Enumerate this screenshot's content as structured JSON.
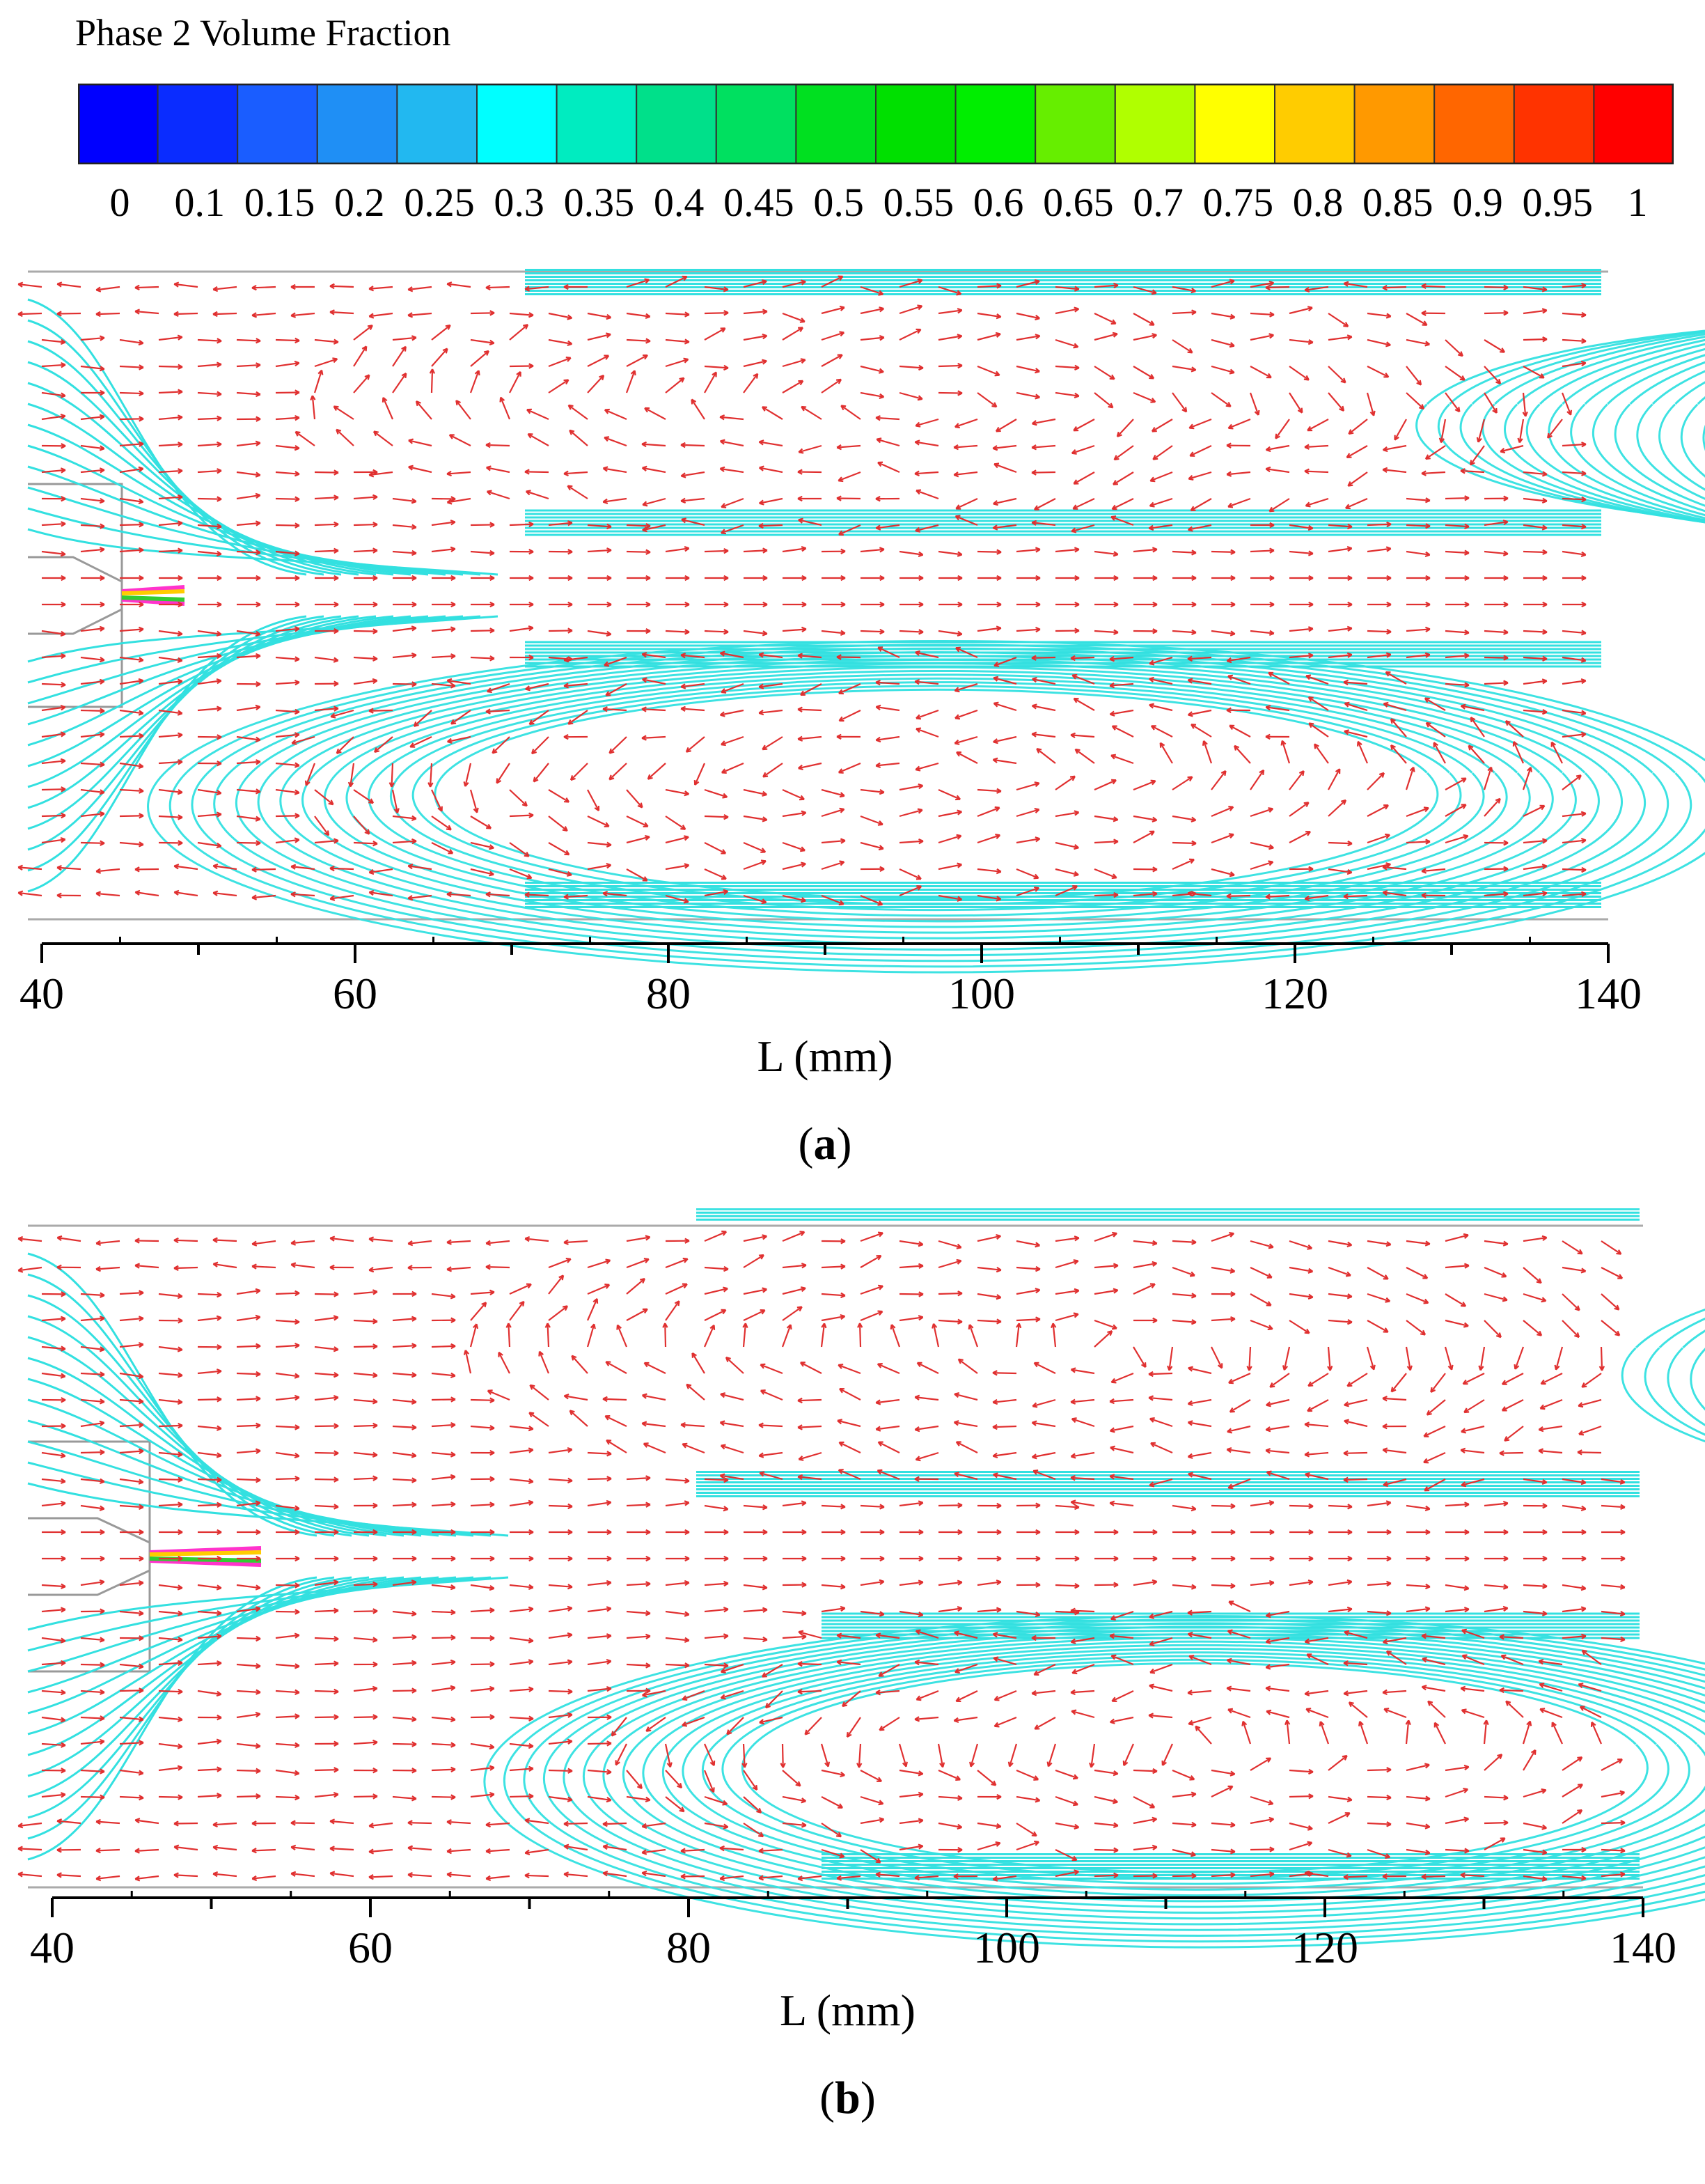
{
  "colorbar": {
    "title": "Phase 2 Volume Fraction",
    "tick_labels": [
      "0",
      "0.1",
      "0.15",
      "0.2",
      "0.25",
      "0.3",
      "0.35",
      "0.4",
      "0.45",
      "0.5",
      "0.55",
      "0.6",
      "0.65",
      "0.7",
      "0.75",
      "0.8",
      "0.85",
      "0.9",
      "0.95",
      "1"
    ],
    "colors": [
      "#0000ff",
      "#0a2cff",
      "#1a5dff",
      "#1f8ff5",
      "#22b8f0",
      "#00ffff",
      "#00ecc0",
      "#00e08a",
      "#00e060",
      "#00e020",
      "#00e000",
      "#00ee00",
      "#66ee00",
      "#b0ff00",
      "#ffff00",
      "#ffcc00",
      "#ff9900",
      "#ff6600",
      "#ff3300",
      "#ff0000"
    ]
  },
  "figure": {
    "streamline_color": "#33e0e0",
    "vector_color": "#e03030",
    "panels": [
      {
        "label_open": "(",
        "label_letter": "a",
        "label_close": ")",
        "x_axis": {
          "label": "L (mm)",
          "ticks": [
            "40",
            "60",
            "80",
            "100",
            "120",
            "140"
          ],
          "range": [
            40,
            140
          ],
          "minor_step": 10
        }
      },
      {
        "label_open": "(",
        "label_letter": "b",
        "label_close": ")",
        "x_axis": {
          "label": "L (mm)",
          "ticks": [
            "40",
            "60",
            "80",
            "100",
            "120",
            "140"
          ],
          "range": [
            40,
            140
          ],
          "minor_step": 10
        }
      }
    ]
  }
}
